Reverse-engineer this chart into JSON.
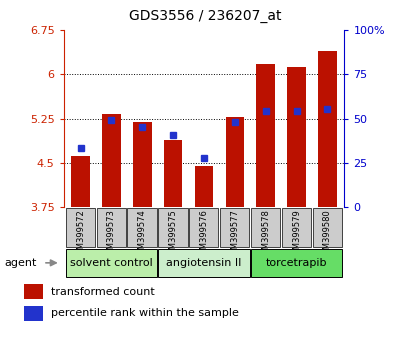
{
  "title": "GDS3556 / 236207_at",
  "categories": [
    "GSM399572",
    "GSM399573",
    "GSM399574",
    "GSM399575",
    "GSM399576",
    "GSM399577",
    "GSM399578",
    "GSM399579",
    "GSM399580"
  ],
  "red_values": [
    4.62,
    5.32,
    5.2,
    4.88,
    4.44,
    5.27,
    6.18,
    6.12,
    6.4
  ],
  "blue_values": [
    4.75,
    5.22,
    5.1,
    4.98,
    4.58,
    5.2,
    5.38,
    5.38,
    5.42
  ],
  "y_min": 3.75,
  "y_max": 6.75,
  "y_ticks": [
    3.75,
    4.5,
    5.25,
    6.0,
    6.75
  ],
  "y_tick_labels": [
    "3.75",
    "4.5",
    "5.25",
    "6",
    "6.75"
  ],
  "y2_ticks": [
    0,
    25,
    50,
    75,
    100
  ],
  "y2_tick_positions": [
    3.75,
    4.5,
    5.25,
    6.0,
    6.75
  ],
  "y2_tick_labels": [
    "0",
    "25",
    "50",
    "75",
    "100%"
  ],
  "bar_color": "#bb1100",
  "blue_color": "#2233cc",
  "agent_groups": [
    {
      "label": "solvent control",
      "start": 0,
      "end": 2,
      "color": "#bbeeaa"
    },
    {
      "label": "angiotensin II",
      "start": 3,
      "end": 5,
      "color": "#cceecc"
    },
    {
      "label": "torcetrapib",
      "start": 6,
      "end": 8,
      "color": "#66dd66"
    }
  ],
  "legend_items": [
    {
      "color": "#bb1100",
      "label": "transformed count"
    },
    {
      "color": "#2233cc",
      "label": "percentile rank within the sample"
    }
  ],
  "bar_width": 0.6,
  "tick_label_color_left": "#cc2200",
  "tick_label_color_right": "#0000cc",
  "sample_bg_color": "#cccccc",
  "agent_label": "agent"
}
